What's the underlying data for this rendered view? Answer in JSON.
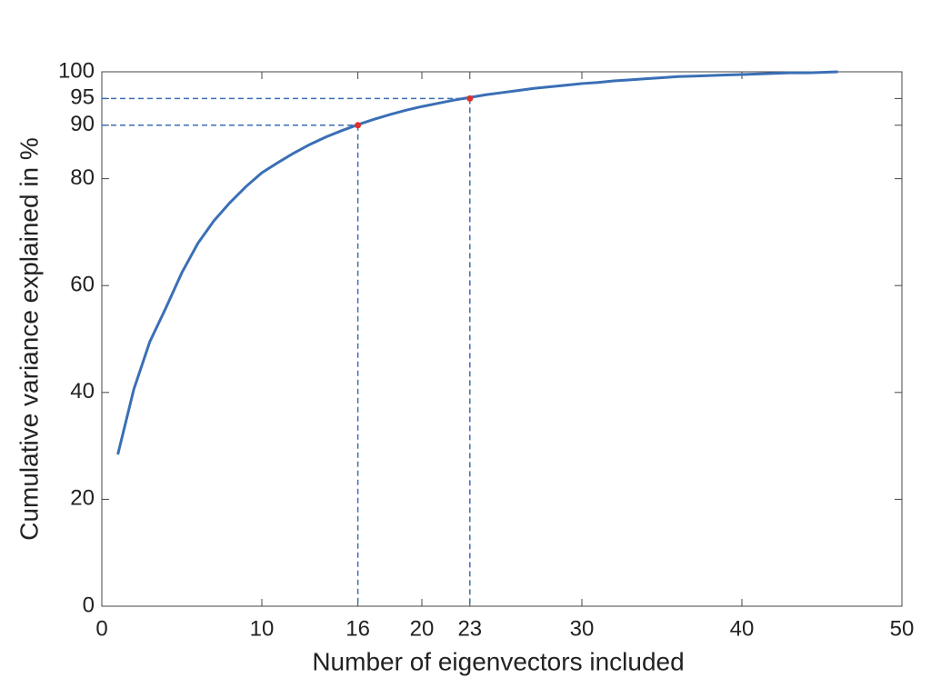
{
  "chart_data": {
    "type": "line",
    "xlabel": "Number of eigenvectors included",
    "ylabel": "Cumulative variance explained in %",
    "x": [
      1,
      2,
      3,
      4,
      5,
      6,
      7,
      8,
      9,
      10,
      11,
      12,
      13,
      14,
      15,
      16,
      17,
      18,
      19,
      20,
      21,
      22,
      23,
      24,
      25,
      26,
      27,
      28,
      29,
      30,
      31,
      32,
      33,
      34,
      35,
      36,
      37,
      38,
      39,
      40,
      41,
      42,
      43,
      44,
      45,
      46
    ],
    "series": [
      {
        "color": "#3a6fb5",
        "values": [
          28.4,
          40.6,
          49.5,
          55.8,
          62.4,
          67.9,
          72.1,
          75.5,
          78.5,
          81.1,
          83.0,
          84.8,
          86.4,
          87.8,
          89.0,
          90.1,
          91.1,
          92.0,
          92.8,
          93.5,
          94.1,
          94.7,
          95.2,
          95.7,
          96.1,
          96.5,
          96.9,
          97.2,
          97.5,
          97.8,
          98.0,
          98.3,
          98.5,
          98.7,
          98.9,
          99.1,
          99.2,
          99.3,
          99.4,
          99.5,
          99.6,
          99.7,
          99.8,
          99.8,
          99.9,
          100
        ]
      }
    ],
    "markers": {
      "color": "#e0302a",
      "x": [
        16,
        23
      ],
      "y": [
        90,
        95
      ]
    },
    "xlim": [
      0,
      50
    ],
    "ylim": [
      0,
      100
    ],
    "xticks": [
      0,
      10,
      16,
      20,
      23,
      30,
      40,
      50
    ],
    "yticks": [
      0,
      20,
      40,
      60,
      80,
      90,
      95,
      100
    ]
  }
}
